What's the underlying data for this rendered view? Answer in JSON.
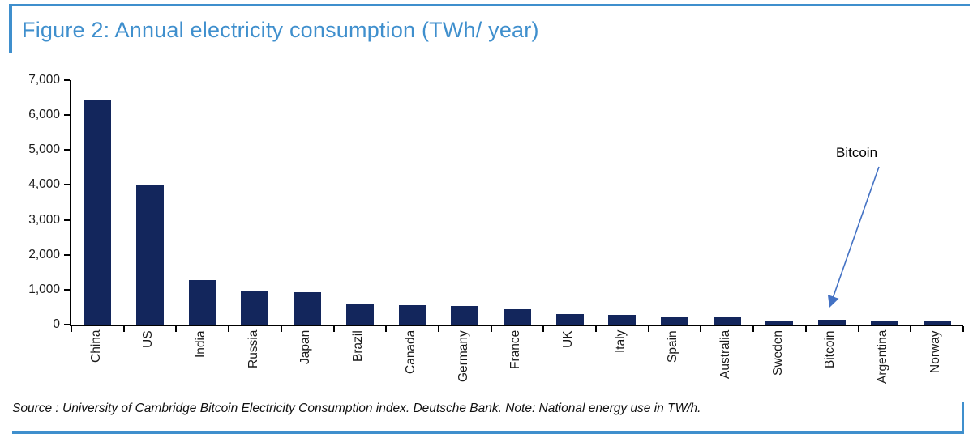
{
  "figure": {
    "title": "Figure 2: Annual electricity consumption (TWh/ year)",
    "annotation_label": "Bitcoin",
    "source": "Source : University of Cambridge Bitcoin Electricity Consumption index. Deutsche Bank. Note: National energy use in TW/h."
  },
  "colors": {
    "accent_blue": "#3f8fcd",
    "bar_navy": "#13265c",
    "arrow_blue": "#4472c4",
    "axis_black": "#000000"
  },
  "chart_data": {
    "type": "bar",
    "title": "Figure 2: Annual electricity consumption (TWh/ year)",
    "categories": [
      "China",
      "US",
      "India",
      "Russia",
      "Japan",
      "Brazil",
      "Canada",
      "Germany",
      "France",
      "UK",
      "Italy",
      "Spain",
      "Australia",
      "Sweden",
      "Bitcoin",
      "Argentina",
      "Norway"
    ],
    "values": [
      6450,
      3990,
      1275,
      965,
      920,
      590,
      555,
      525,
      450,
      300,
      290,
      235,
      230,
      125,
      135,
      120,
      120
    ],
    "xlabel": "",
    "ylabel": "",
    "ylim": [
      0,
      7000
    ],
    "ytick_values": [
      0,
      1000,
      2000,
      3000,
      4000,
      5000,
      6000,
      7000
    ],
    "ytick_labels": [
      "0",
      "1,000",
      "2,000",
      "3,000",
      "4,000",
      "5,000",
      "6,000",
      "7,000"
    ],
    "grid": false,
    "legend": false,
    "bar_color": "#13265c",
    "annotation": {
      "text": "Bitcoin",
      "target_category": "Bitcoin"
    }
  }
}
